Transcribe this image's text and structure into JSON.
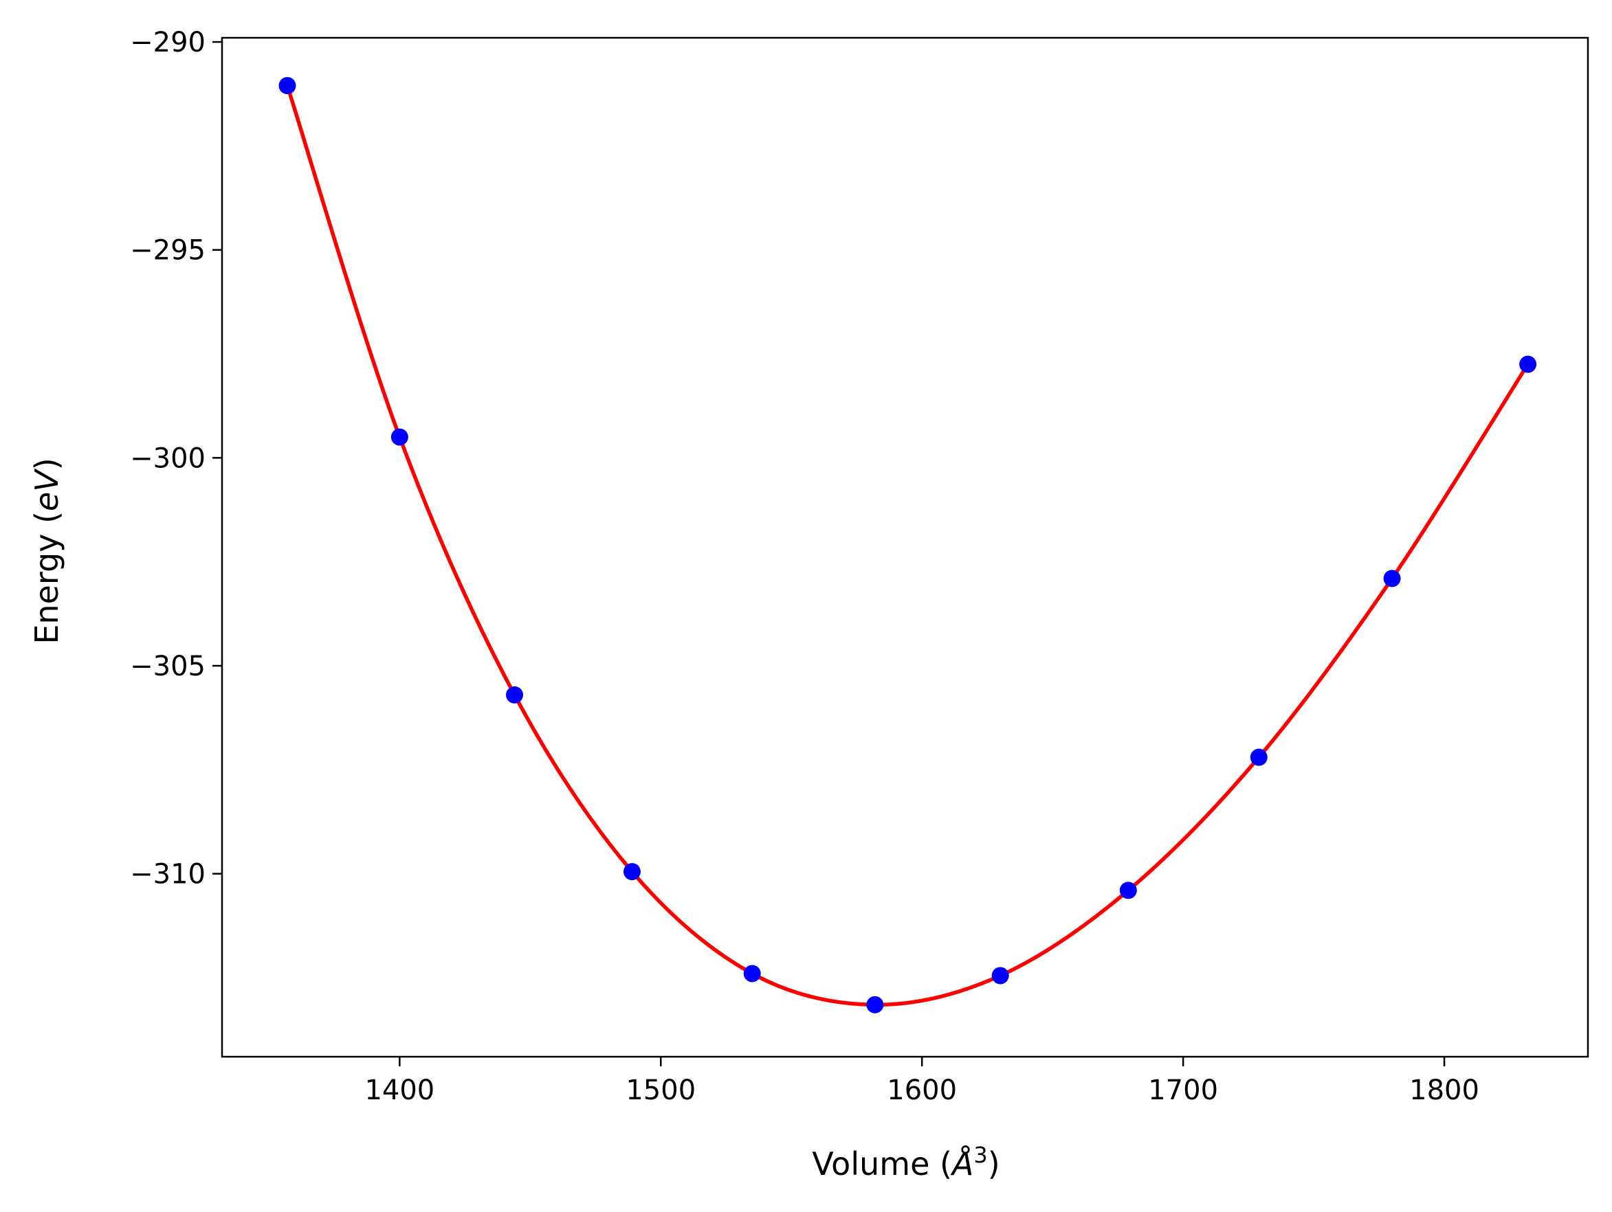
{
  "chart_data": {
    "type": "line",
    "xlabel": {
      "pre": "Volume (",
      "sym": "Å",
      "sup": "3",
      "post": ")"
    },
    "ylabel": {
      "pre": "Energy (",
      "sym": "eV",
      "post": ")"
    },
    "xlim": [
      1332,
      1855
    ],
    "ylim": [
      -314.4,
      -289.9
    ],
    "xticks": [
      1400,
      1500,
      1600,
      1700,
      1800
    ],
    "xtick_labels": [
      "1400",
      "1500",
      "1600",
      "1700",
      "1800"
    ],
    "yticks": [
      -290,
      -295,
      -300,
      -305,
      -310
    ],
    "ytick_labels": [
      "−290",
      "−295",
      "−300",
      "−305",
      "−310"
    ],
    "grid": false,
    "series": [
      {
        "kind": "points",
        "color": "#0000ff",
        "x": [
          1357,
          1400,
          1444,
          1489,
          1535,
          1582,
          1630,
          1679,
          1729,
          1780,
          1832
        ],
        "y": [
          -291.05,
          -299.5,
          -305.7,
          -309.95,
          -312.4,
          -313.15,
          -312.45,
          -310.4,
          -307.2,
          -302.9,
          -297.75
        ]
      },
      {
        "kind": "fit-line",
        "color": "#ff0000",
        "x": [
          1357,
          1400,
          1444,
          1489,
          1535,
          1582,
          1630,
          1679,
          1729,
          1780,
          1832
        ],
        "y": [
          -291.05,
          -299.5,
          -305.7,
          -309.95,
          -312.4,
          -313.15,
          -312.45,
          -310.4,
          -307.2,
          -302.9,
          -297.75
        ]
      }
    ]
  }
}
